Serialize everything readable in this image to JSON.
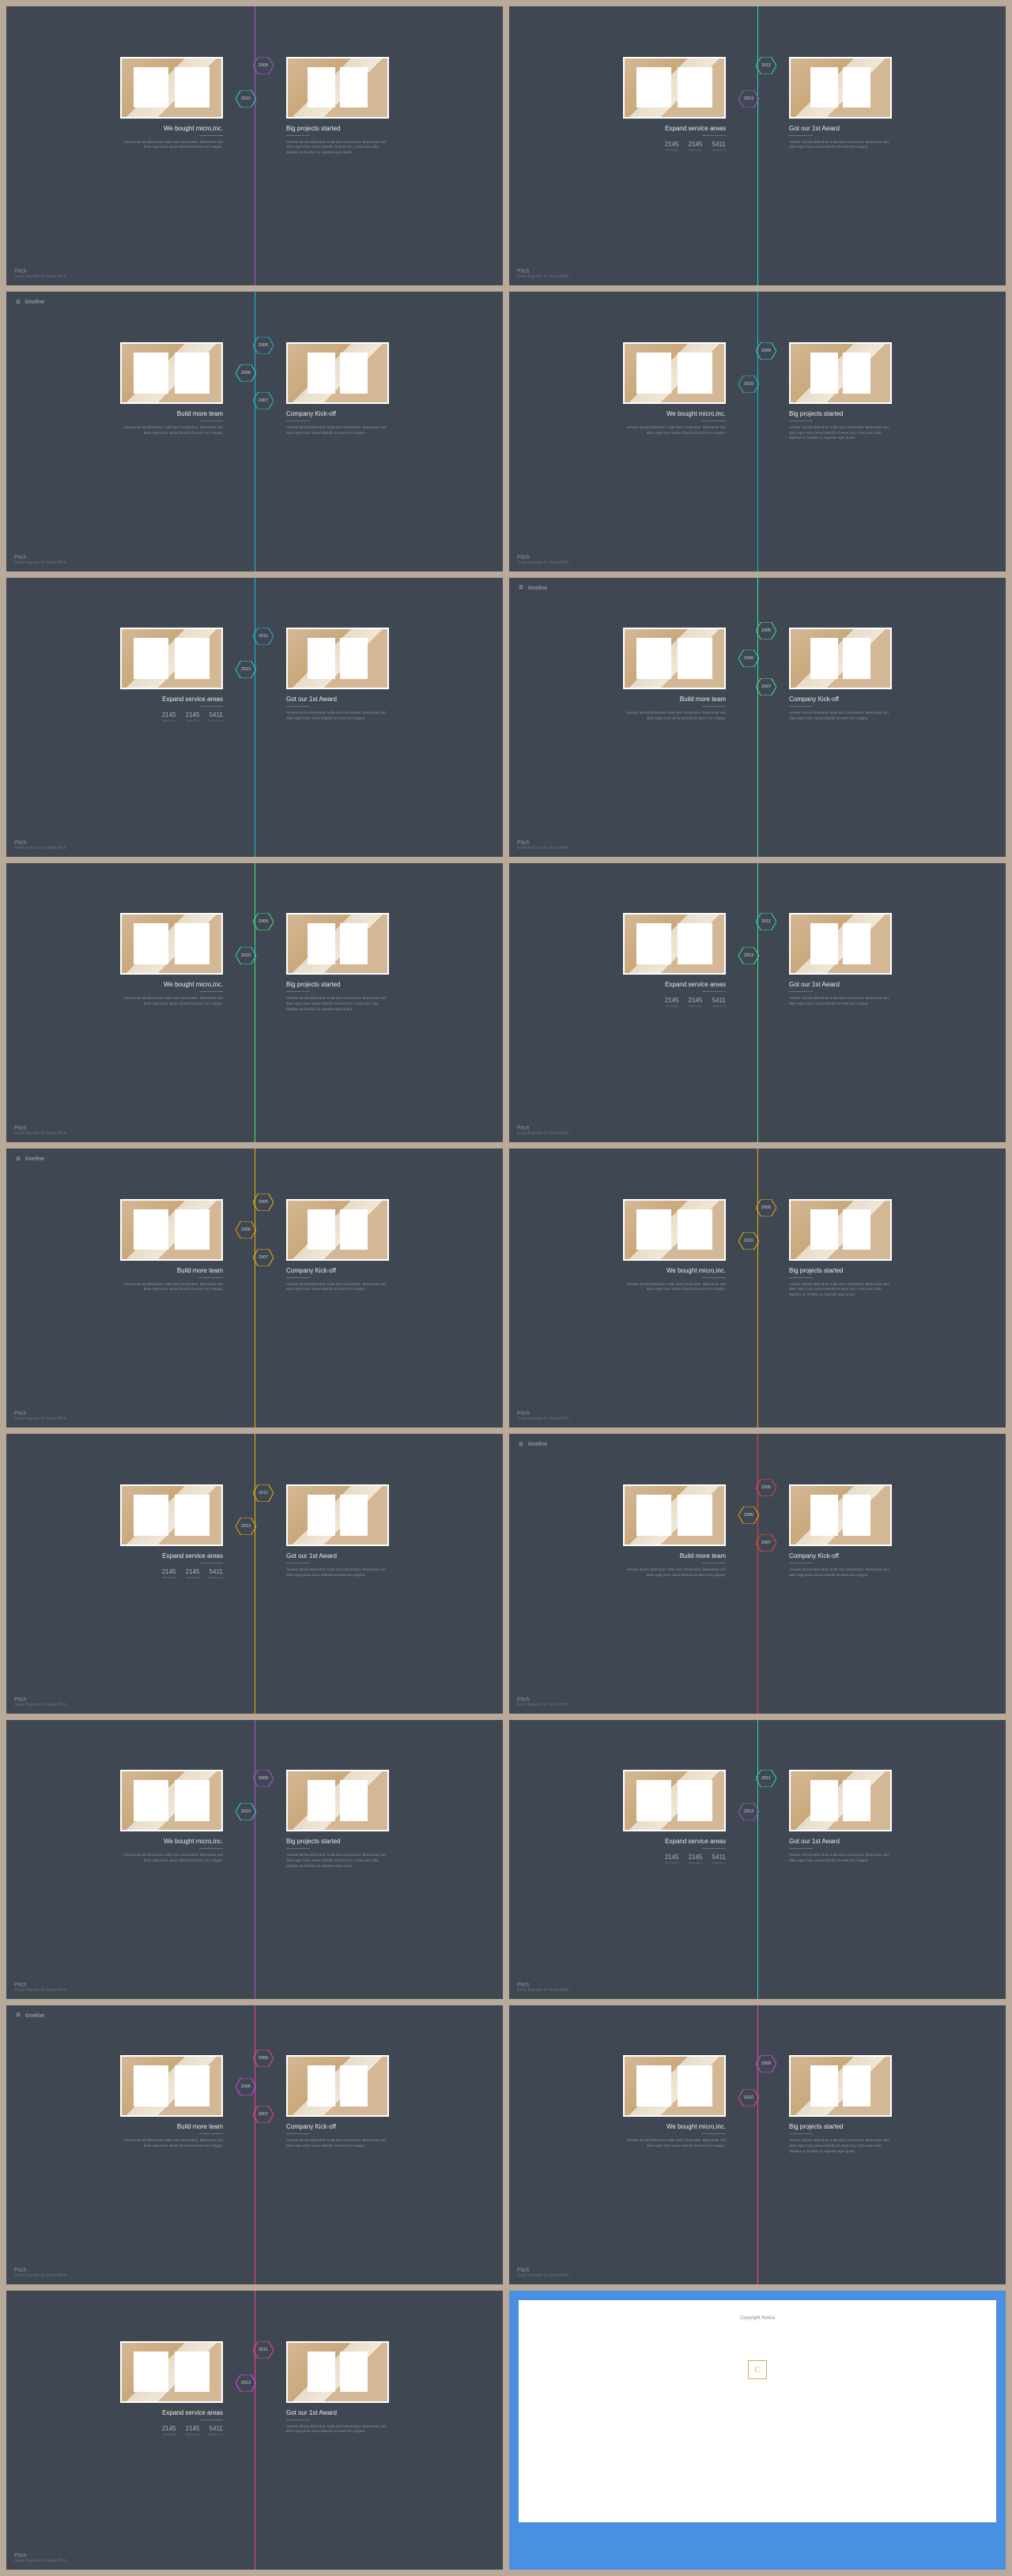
{
  "page_bg": "#b8a99a",
  "slide_bg": "#3f4852",
  "header_label": "timeline",
  "footer_brand": "Pitch",
  "footer_tagline": "Good Keynote for Great Pitch.",
  "text_lorem_a": "Aenean lacinia bibendum nulla sed consectetur. Maecenas sed diam eget risus varius blandit sit amet non magna.",
  "text_lorem_b": "Aenean lacinia bibendum nulla sed consectetur. Maecenas sed diam eget risus varius blandit sit amet non. Cras justo odio, dapibus ac facilisis in, egestas eget quam.",
  "titles": {
    "bought": "We bought micro,inc.",
    "big": "Big projects started",
    "expand": "Expand service areas",
    "award": "Got our 1st Award",
    "build": "Build more team",
    "kickoff": "Company Kick-off"
  },
  "stats": {
    "n1": "2145",
    "n2": "2145",
    "n3": "5411",
    "label": "bibendum"
  },
  "years": {
    "y05": "2005",
    "y06": "2006",
    "y07": "2007",
    "y09": "2009",
    "y10": "2010",
    "y11": "2011",
    "y13": "2013"
  },
  "colors": {
    "purple": "#a855c7",
    "teal": "#2dd4bf",
    "cyan": "#22b8cf",
    "green": "#4ade80",
    "yellow": "#eab308",
    "orange": "#f59e0b",
    "red": "#ef4444",
    "pink": "#ec4899",
    "magenta": "#d946ef"
  },
  "copyright": "Copyright Notice",
  "logo_letter": "C",
  "slides": [
    {
      "type": "AB",
      "line": "purple",
      "h1": "purple",
      "h2": "teal",
      "y1": "y09",
      "y2": "y10",
      "lt": "bought",
      "rt": "big",
      "lbody": "a",
      "rbody": "b",
      "stats": false,
      "header": false
    },
    {
      "type": "AB",
      "line": "teal",
      "h1": "teal",
      "h2": "purple",
      "y1": "y11",
      "y2": "y13",
      "lt": "expand",
      "rt": "award",
      "lbody": "stats",
      "rbody": "a",
      "stats": true,
      "header": false
    },
    {
      "type": "THREE",
      "line": "cyan",
      "h1": "cyan",
      "h2": "teal",
      "h3": "cyan",
      "y1": "y05",
      "y2": "y06",
      "y3": "y07",
      "lt": "build",
      "rt": "kickoff",
      "lbody": "a",
      "rbody": "a",
      "header": true
    },
    {
      "type": "AB",
      "line": "cyan",
      "h1": "teal",
      "h2": "cyan",
      "y1": "y09",
      "y2": "y10",
      "lt": "bought",
      "rt": "big",
      "lbody": "a",
      "rbody": "b",
      "stats": false,
      "header": false
    },
    {
      "type": "AB",
      "line": "cyan",
      "h1": "cyan",
      "h2": "teal",
      "y1": "y11",
      "y2": "y13",
      "lt": "expand",
      "rt": "award",
      "lbody": "stats",
      "rbody": "a",
      "stats": true,
      "header": false
    },
    {
      "type": "THREE",
      "line": "green",
      "h1": "green",
      "h2": "teal",
      "h3": "green",
      "y1": "y05",
      "y2": "y06",
      "y3": "y07",
      "lt": "build",
      "rt": "kickoff",
      "lbody": "a",
      "rbody": "a",
      "header": true
    },
    {
      "type": "AB",
      "line": "green",
      "h1": "green",
      "h2": "teal",
      "y1": "y09",
      "y2": "y10",
      "lt": "bought",
      "rt": "big",
      "lbody": "a",
      "rbody": "b",
      "stats": false,
      "header": false
    },
    {
      "type": "AB",
      "line": "green",
      "h1": "teal",
      "h2": "green",
      "y1": "y11",
      "y2": "y13",
      "lt": "expand",
      "rt": "award",
      "lbody": "stats",
      "rbody": "a",
      "stats": true,
      "header": false
    },
    {
      "type": "THREE",
      "line": "yellow",
      "h1": "yellow",
      "h2": "orange",
      "h3": "yellow",
      "y1": "y05",
      "y2": "y06",
      "y3": "y07",
      "lt": "build",
      "rt": "kickoff",
      "lbody": "a",
      "rbody": "a",
      "header": true
    },
    {
      "type": "AB",
      "line": "yellow",
      "h1": "orange",
      "h2": "yellow",
      "y1": "y09",
      "y2": "y10",
      "lt": "bought",
      "rt": "big",
      "lbody": "a",
      "rbody": "b",
      "stats": false,
      "header": false
    },
    {
      "type": "AB",
      "line": "yellow",
      "h1": "yellow",
      "h2": "orange",
      "y1": "y11",
      "y2": "y13",
      "lt": "expand",
      "rt": "award",
      "lbody": "stats",
      "rbody": "a",
      "stats": true,
      "header": false
    },
    {
      "type": "THREE",
      "line": "red",
      "h1": "red",
      "h2": "orange",
      "h3": "red",
      "y1": "y05",
      "y2": "y06",
      "y3": "y07",
      "lt": "build",
      "rt": "kickoff",
      "lbody": "a",
      "rbody": "a",
      "header": true
    },
    {
      "type": "AB",
      "line": "purple",
      "h1": "purple",
      "h2": "teal",
      "y1": "y09",
      "y2": "y10",
      "lt": "bought",
      "rt": "big",
      "lbody": "a",
      "rbody": "b",
      "stats": false,
      "header": false
    },
    {
      "type": "AB",
      "line": "teal",
      "h1": "teal",
      "h2": "purple",
      "y1": "y11",
      "y2": "y13",
      "lt": "expand",
      "rt": "award",
      "lbody": "stats",
      "rbody": "a",
      "stats": true,
      "header": false
    },
    {
      "type": "THREE",
      "line": "pink",
      "h1": "pink",
      "h2": "magenta",
      "h3": "pink",
      "y1": "y05",
      "y2": "y06",
      "y3": "y07",
      "lt": "build",
      "rt": "kickoff",
      "lbody": "a",
      "rbody": "a",
      "header": true
    },
    {
      "type": "AB",
      "line": "pink",
      "h1": "magenta",
      "h2": "pink",
      "y1": "y09",
      "y2": "y10",
      "lt": "bought",
      "rt": "big",
      "lbody": "a",
      "rbody": "b",
      "stats": false,
      "header": false
    },
    {
      "type": "AB",
      "line": "pink",
      "h1": "pink",
      "h2": "magenta",
      "y1": "y11",
      "y2": "y13",
      "lt": "expand",
      "rt": "award",
      "lbody": "stats",
      "rbody": "a",
      "stats": true,
      "header": false
    },
    {
      "type": "LAST"
    }
  ]
}
